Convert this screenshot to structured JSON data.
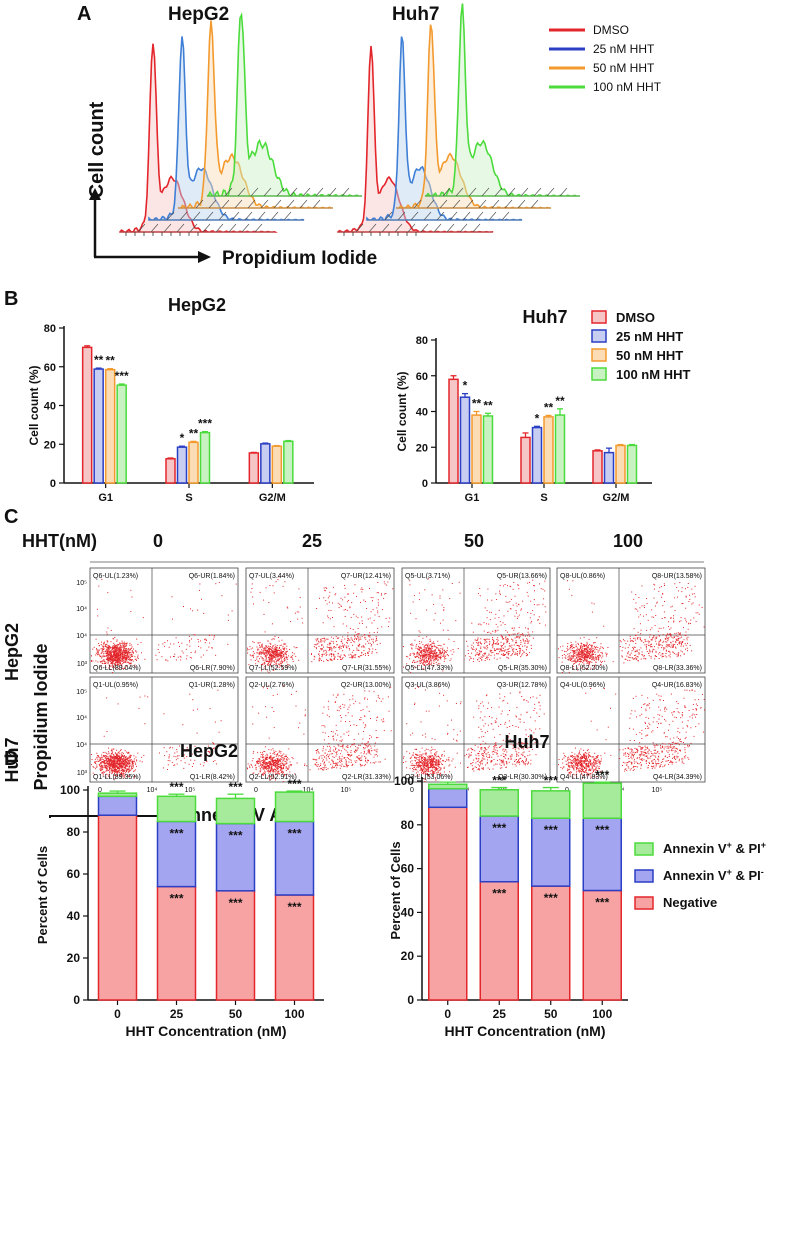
{
  "panel_labels": {
    "a": "A",
    "b": "B",
    "c": "C",
    "d": "D"
  },
  "legend": {
    "items": [
      "DMSO",
      "25 nM HHT",
      "50 nM HHT",
      "100 nM HHT"
    ],
    "colors": [
      "#e3262b",
      "#2b3fc4",
      "#f39a2e",
      "#4cdb3c"
    ],
    "fills": [
      "#f6c6c6",
      "#c8cdf2",
      "#fbdcb4",
      "#c9f2c3"
    ]
  },
  "panel_a": {
    "titles": [
      "HepG2",
      "Huh7"
    ],
    "ylabel": "Cell count",
    "xlabel": "Propidium Iodide"
  },
  "chart_data": [
    {
      "type": "bar",
      "title": "HepG2",
      "ylabel": "Cell count (%)",
      "categories": [
        "G1",
        "S",
        "G2/M"
      ],
      "ylim": [
        0,
        80
      ],
      "yticks": [
        "0",
        "20",
        "40",
        "60",
        "80"
      ],
      "series": [
        {
          "name": "DMSO",
          "values": [
            70,
            12.5,
            15.5
          ],
          "err": [
            0.8,
            0.4,
            0.3
          ]
        },
        {
          "name": "25 nM HHT",
          "values": [
            58.8,
            18.5,
            20.2
          ],
          "err": [
            0.5,
            0.5,
            0.4
          ]
        },
        {
          "name": "50 nM HHT",
          "values": [
            58.5,
            21,
            19
          ],
          "err": [
            0.5,
            0.5,
            0.3
          ]
        },
        {
          "name": "100 nM HHT",
          "values": [
            50.5,
            26,
            21.5
          ],
          "err": [
            0.6,
            0.5,
            0.4
          ]
        }
      ],
      "stars": [
        [
          "",
          "",
          ""
        ],
        [
          "**",
          "*",
          ""
        ],
        [
          "**",
          "**",
          ""
        ],
        [
          "***",
          "***",
          ""
        ]
      ]
    },
    {
      "type": "bar",
      "title": "Huh7",
      "ylabel": "Cell count (%)",
      "categories": [
        "G1",
        "S",
        "G2/M"
      ],
      "ylim": [
        0,
        80
      ],
      "yticks": [
        "0",
        "20",
        "40",
        "60",
        "80"
      ],
      "series": [
        {
          "name": "DMSO",
          "values": [
            58,
            25.5,
            18
          ],
          "err": [
            2,
            2.5,
            0.5
          ]
        },
        {
          "name": "25 nM HHT",
          "values": [
            48,
            31,
            17
          ],
          "err": [
            2,
            0.7,
            2.5
          ]
        },
        {
          "name": "50 nM HHT",
          "values": [
            38,
            37,
            21
          ],
          "err": [
            2,
            0.8,
            0.5
          ]
        },
        {
          "name": "100 nM HHT",
          "values": [
            37.5,
            38,
            21
          ],
          "err": [
            1.5,
            3.5,
            0.5
          ]
        }
      ],
      "stars": [
        [
          "",
          "",
          ""
        ],
        [
          "*",
          "*",
          ""
        ],
        [
          "**",
          "**",
          ""
        ],
        [
          "**",
          "**",
          ""
        ]
      ]
    },
    {
      "type": "bar",
      "stacked": true,
      "title": "HepG2",
      "ylabel": "Percent of Cells",
      "xlabel": "HHT Concentration (nM)",
      "categories": [
        "0",
        "25",
        "50",
        "100"
      ],
      "ylim": [
        0,
        100
      ],
      "yticks": [
        "0",
        "20",
        "40",
        "60",
        "80",
        "100"
      ],
      "series": [
        {
          "name": "Negative",
          "values": [
            88,
            54,
            52,
            50
          ],
          "err": [
            1.5,
            2,
            3.5,
            2
          ]
        },
        {
          "name": "Annexin V + & PI -",
          "values": [
            9,
            31,
            32,
            35
          ],
          "err": [
            0.5,
            1,
            2,
            1
          ]
        },
        {
          "name": "Annexin V + & PI +",
          "values": [
            1.5,
            12,
            12,
            14
          ],
          "err": [
            1,
            1,
            2,
            0.5
          ]
        }
      ],
      "stars": [
        [
          "",
          "***",
          "***",
          "***"
        ],
        [
          "",
          "***",
          "***",
          "***"
        ],
        [
          "",
          "***",
          "***",
          "***"
        ]
      ]
    },
    {
      "type": "bar",
      "stacked": true,
      "title": "Huh7",
      "ylabel": "Percent of Cells",
      "xlabel": "HHT Concentration (nM)",
      "categories": [
        "0",
        "25",
        "50",
        "100"
      ],
      "ylim": [
        0,
        100
      ],
      "yticks": [
        "0",
        "20",
        "40",
        "60",
        "80",
        "100"
      ],
      "series": [
        {
          "name": "Negative",
          "values": [
            88,
            54,
            52,
            50
          ],
          "err": [
            1.5,
            2,
            3.5,
            2
          ]
        },
        {
          "name": "Annexin V + & PI -",
          "values": [
            8.5,
            30,
            31,
            33
          ],
          "err": [
            0.5,
            1,
            1.5,
            1
          ]
        },
        {
          "name": "Annexin V + & PI +",
          "values": [
            2,
            12,
            12.5,
            16
          ],
          "err": [
            1,
            1,
            1.5,
            0.5
          ]
        }
      ],
      "stars": [
        [
          "",
          "***",
          "***",
          "***"
        ],
        [
          "",
          "***",
          "***",
          "***"
        ],
        [
          "",
          "***",
          "***",
          "***"
        ]
      ]
    }
  ],
  "legend_d": [
    {
      "main": "Annexin V",
      "sup1": "+",
      "mid": " & PI",
      "sup2": "+",
      "color": "#4cdb3c",
      "fill": "#a6eb9b"
    },
    {
      "main": "Annexin V",
      "sup1": "+",
      "mid": " & PI",
      "sup2": "-",
      "color": "#2b3fc4",
      "fill": "#a4a5f0"
    },
    {
      "main": "Negative",
      "sup1": "",
      "mid": "",
      "sup2": "",
      "color": "#e3262b",
      "fill": "#f7a3a3"
    }
  ],
  "panel_c": {
    "hht_label": "HHT(nM)",
    "concentrations": [
      "0",
      "25",
      "50",
      "100"
    ],
    "rows": [
      "HepG2",
      "Huh7"
    ],
    "ylabel": "Propidium Iodide",
    "xlabel": "Annexin V APC",
    "xtick_labels": [
      "0",
      "10⁴",
      "10⁵"
    ],
    "ytick_labels": [
      "10³",
      "10⁴",
      "10⁵"
    ],
    "plots": [
      [
        {
          "ul": "Q6-UL(1.23%)",
          "ur": "Q6-UR(1.84%)",
          "ll": "Q6-LL(89.04%)",
          "lr": "Q6-LR(7.90%)",
          "ul_v": 1.23,
          "ur_v": 1.84,
          "ll_v": 89.04,
          "lr_v": 7.9
        },
        {
          "ul": "Q7-UL(3.44%)",
          "ur": "Q7-UR(12.41%)",
          "ll": "Q7-LL(52.59%)",
          "lr": "Q7-LR(31.55%)",
          "ul_v": 3.44,
          "ur_v": 12.41,
          "ll_v": 52.59,
          "lr_v": 31.55
        },
        {
          "ul": "Q5-UL(3.71%)",
          "ur": "Q5-UR(13.66%)",
          "ll": "Q5-LL(47.33%)",
          "lr": "Q5-LR(35.30%)",
          "ul_v": 3.71,
          "ur_v": 13.66,
          "ll_v": 47.33,
          "lr_v": 35.3
        },
        {
          "ul": "Q8-UL(0.86%)",
          "ur": "Q8-UR(13.58%)",
          "ll": "Q8-LL(52.20%)",
          "lr": "Q8-LR(33.36%)",
          "ul_v": 0.86,
          "ur_v": 13.58,
          "ll_v": 52.2,
          "lr_v": 33.36
        }
      ],
      [
        {
          "ul": "Q1-UL(0.95%)",
          "ur": "Q1-UR(1.28%)",
          "ll": "Q1-LL(89.35%)",
          "lr": "Q1-LR(8.42%)",
          "ul_v": 0.95,
          "ur_v": 1.28,
          "ll_v": 89.35,
          "lr_v": 8.42
        },
        {
          "ul": "Q2-UL(2.76%)",
          "ur": "Q2-UR(13.00%)",
          "ll": "Q2-LL(52.91%)",
          "lr": "Q2-LR(31.33%)",
          "ul_v": 2.76,
          "ur_v": 13.0,
          "ll_v": 52.91,
          "lr_v": 31.33
        },
        {
          "ul": "Q3-UL(3.86%)",
          "ur": "Q3-UR(12.78%)",
          "ll": "Q3-LL(53.06%)",
          "lr": "Q3-LR(30.30%)",
          "ul_v": 3.86,
          "ur_v": 12.78,
          "ll_v": 53.06,
          "lr_v": 30.3
        },
        {
          "ul": "Q4-UL(0.96%)",
          "ur": "Q4-UR(16.83%)",
          "ll": "Q4-LL(47.83%)",
          "lr": "Q4-LR(34.39%)",
          "ul_v": 0.96,
          "ur_v": 16.83,
          "ll_v": 47.83,
          "lr_v": 34.39
        }
      ]
    ]
  }
}
